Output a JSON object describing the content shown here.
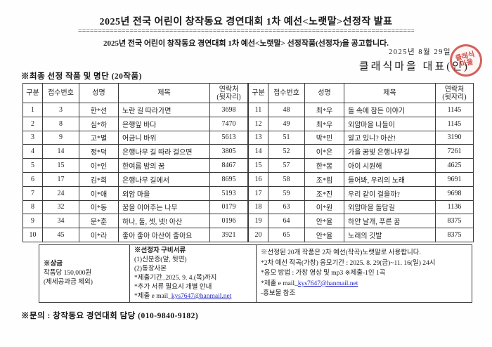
{
  "doc": {
    "title": "2025년 전국 어린이 창작동요 경연대회 1차 예선<노랫말>선정작 발표",
    "title_rule": "====================================================================================================",
    "subtitle": "2025년 전국 어린이 창작동요 경연대회 1차 예선<노랫말> 선정작품(선정자)을 공고합니다.",
    "date": "2025년 8월 29일",
    "signer": "클래식마을 대표(인)",
    "stamp": {
      "line1": "클래식",
      "line2": "마을",
      "color": "#c63028"
    },
    "section_heading": "※최종 선정 작품 및 명단 (20작품)"
  },
  "table": {
    "headers": [
      "구분",
      "접수번호",
      "성명",
      "제목",
      "연락처\n(뒷자리)"
    ],
    "left_rows": [
      {
        "no": "1",
        "entry": "3",
        "name": "한*선",
        "title": "노란 길 따라가면",
        "phone": "3698"
      },
      {
        "no": "2",
        "entry": "8",
        "name": "심*하",
        "title": "은행잎 바다",
        "phone": "7470"
      },
      {
        "no": "3",
        "entry": "9",
        "name": "고*별",
        "title": "어금니 바위",
        "phone": "5613"
      },
      {
        "no": "4",
        "entry": "14",
        "name": "정*덕",
        "title": "은행나무 길 따라 걸으면",
        "phone": "3805"
      },
      {
        "no": "5",
        "entry": "15",
        "name": "이*인",
        "title": "한여름 밤의 꿈",
        "phone": "8467"
      },
      {
        "no": "6",
        "entry": "17",
        "name": "김*희",
        "title": "은행나무 길에서",
        "phone": "8695"
      },
      {
        "no": "7",
        "entry": "24",
        "name": "이*애",
        "title": "외암 마을",
        "phone": "5193"
      },
      {
        "no": "8",
        "entry": "32",
        "name": "이*동",
        "title": "꿈을 이어주는 나무",
        "phone": "0179"
      },
      {
        "no": "9",
        "entry": "34",
        "name": "문*훈",
        "title": "하나, 둘, 셋, 넷! 아산",
        "phone": "0196"
      },
      {
        "no": "10",
        "entry": "45",
        "name": "이*라",
        "title": "좋아 좋아 아산이 좋아요",
        "phone": "3921"
      }
    ],
    "right_rows": [
      {
        "no": "11",
        "entry": "48",
        "name": "최*우",
        "title": "돌 속에 잠든 이야기",
        "phone": "1145"
      },
      {
        "no": "12",
        "entry": "49",
        "name": "최*우",
        "title": "외암마을 나들이",
        "phone": "1145"
      },
      {
        "no": "13",
        "entry": "51",
        "name": "박*민",
        "title": "알고 있니? 아산!",
        "phone": "3190"
      },
      {
        "no": "14",
        "entry": "52",
        "name": "이*은",
        "title": "가을 꿈빛 은행나무길",
        "phone": "7261"
      },
      {
        "no": "15",
        "entry": "57",
        "name": "한*몽",
        "title": "아이 시원해",
        "phone": "4625"
      },
      {
        "no": "16",
        "entry": "58",
        "name": "조*림",
        "title": "들어봐, 우리의 노래",
        "phone": "9691"
      },
      {
        "no": "17",
        "entry": "59",
        "name": "조*진",
        "title": "우리 같이 걸을까?",
        "phone": "9698"
      },
      {
        "no": "18",
        "entry": "63",
        "name": "이*원",
        "title": "외암마을 돌담길",
        "phone": "1136"
      },
      {
        "no": "19",
        "entry": "64",
        "name": "안*율",
        "title": "하얀 날개, 푸른 꿈",
        "phone": "8375"
      },
      {
        "no": "20",
        "entry": "65",
        "name": "안*율",
        "title": "노래의 깃발",
        "phone": "8375"
      }
    ]
  },
  "info_box": {
    "prize": {
      "title": "※상금",
      "lines": [
        "작품당 150,000원",
        "(제세공과금 제외)"
      ]
    },
    "documents": {
      "title": "※선정자 구비서류",
      "lines": [
        "(1)신분증(앞, 뒷면)",
        "(2)통장사본",
        "*제출기간_2025. 9. 4.(목)까지",
        "*추가 서류 필요시 개별 안내"
      ],
      "email_prefix": "*제출 e mail_",
      "email": "kys7647@hanmail.net"
    },
    "next_round": {
      "lines": [
        "※선정된 20개 작품은 2차 예선(작곡)노랫말로 사용합니다.",
        "*2차 예선 작곡(가창) 응모기간 : 2025. 8. 29(금)~11. 16(일) 24시",
        "*응모 방법 : 가창 영상 및 mp3 ※제출-1인 1곡"
      ],
      "email_prefix": "*제출 e mail_",
      "email": "kys7647@hanmail.net",
      "last_line": "-홍보물 참조"
    }
  },
  "footer": {
    "contact": "※문의 : 창작동요 경연대회 담당 (010-9840-9182)"
  }
}
